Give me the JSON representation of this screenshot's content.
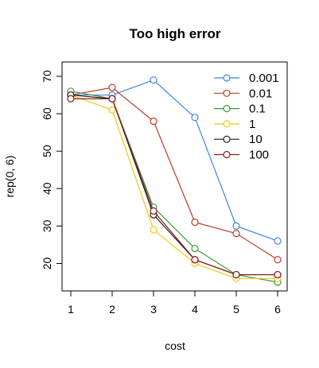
{
  "chart_data": {
    "type": "line",
    "title": "Too high error",
    "xlabel": "cost",
    "ylabel": "rep(0, 6)",
    "x": [
      1,
      2,
      3,
      4,
      5,
      6
    ],
    "xlim": [
      1,
      6
    ],
    "ylim": [
      15,
      70
    ],
    "xticks": [
      "1",
      "2",
      "3",
      "4",
      "5",
      "6"
    ],
    "yticks": [
      "20",
      "30",
      "40",
      "50",
      "60",
      "70"
    ],
    "grid": false,
    "legend_position": "top-right",
    "markers": "open-circle",
    "series": [
      {
        "name": "0.001",
        "color": "#3d85e0",
        "values": [
          65,
          65,
          69,
          59,
          30,
          26
        ]
      },
      {
        "name": "0.01",
        "color": "#c0392b",
        "values": [
          65,
          67,
          58,
          31,
          28,
          21
        ]
      },
      {
        "name": "0.1",
        "color": "#3a9a3a",
        "values": [
          66,
          64,
          35,
          24,
          17,
          15
        ]
      },
      {
        "name": "1",
        "color": "#f2c80f",
        "values": [
          65,
          61,
          29,
          20,
          16,
          16
        ]
      },
      {
        "name": "10",
        "color": "#1a1a1a",
        "values": [
          65,
          64,
          33,
          21,
          17,
          17
        ]
      },
      {
        "name": "100",
        "color": "#8b1a1a",
        "values": [
          64,
          64,
          34,
          21,
          17,
          17
        ]
      }
    ]
  }
}
